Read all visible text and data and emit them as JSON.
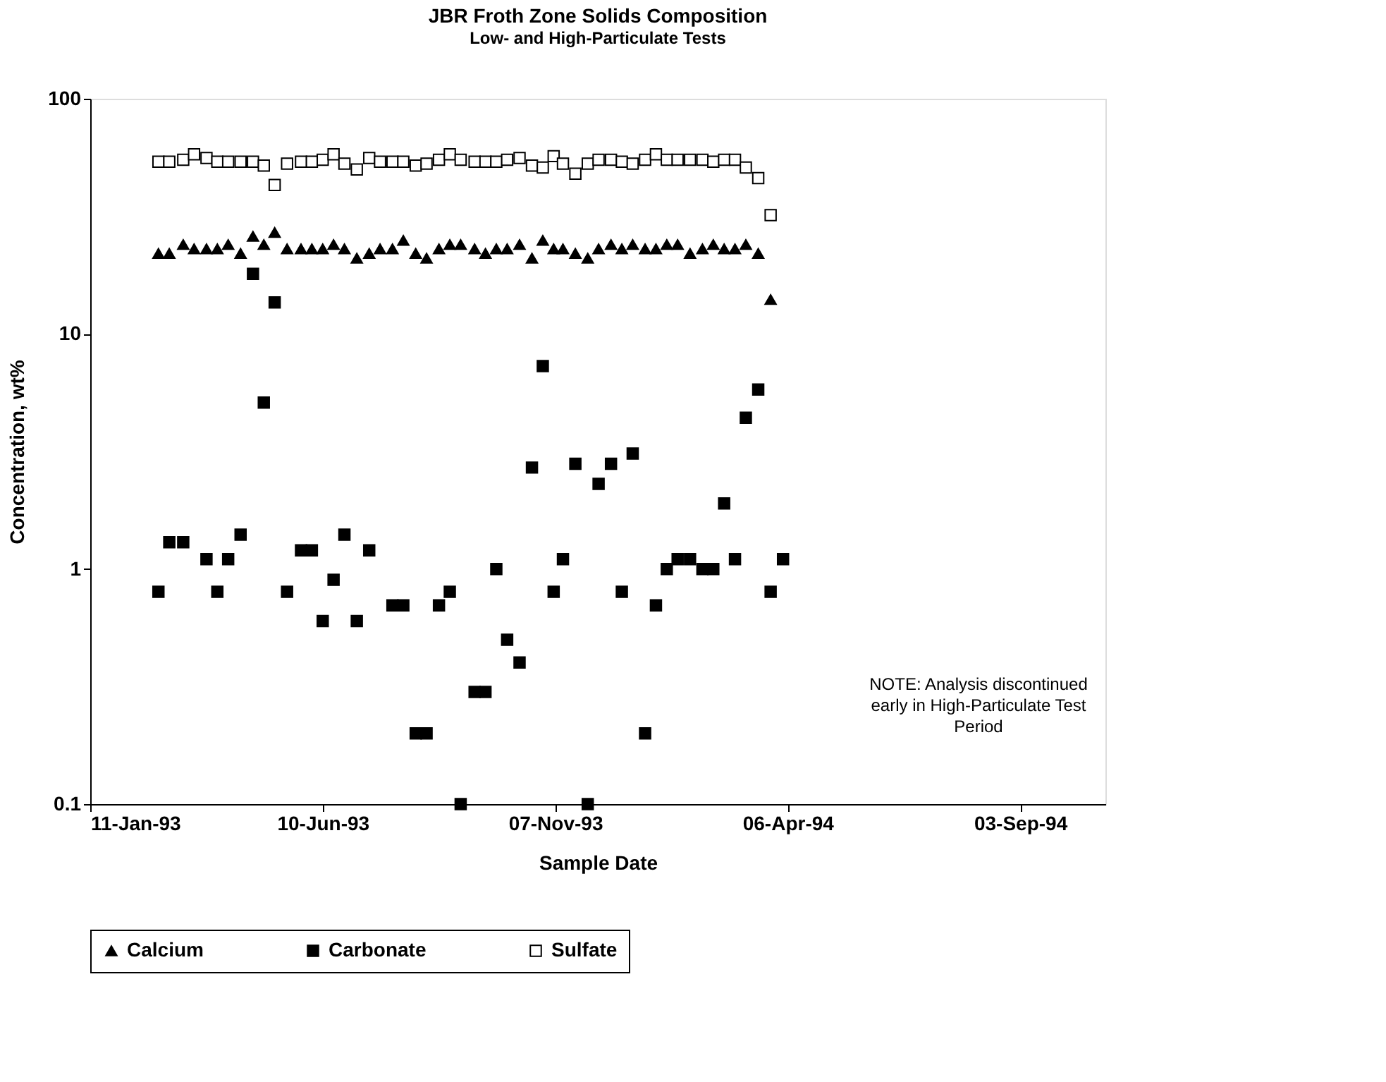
{
  "chart_data": {
    "type": "scatter",
    "title": "JBR Froth Zone Solids Composition",
    "subtitle": "Low- and High-Particulate Tests",
    "xlabel": "Sample Date",
    "ylabel": "Concentration, wt%",
    "x": [
      "1993-02-24",
      "1993-03-03",
      "1993-03-12",
      "1993-03-19",
      "1993-03-27",
      "1993-04-03",
      "1993-04-10",
      "1993-04-18",
      "1993-04-26",
      "1993-05-03",
      "1993-05-10",
      "1993-05-18",
      "1993-05-27",
      "1993-06-03",
      "1993-06-10",
      "1993-06-17",
      "1993-06-24",
      "1993-07-02",
      "1993-07-10",
      "1993-07-17",
      "1993-07-25",
      "1993-08-01",
      "1993-08-09",
      "1993-08-16",
      "1993-08-24",
      "1993-08-31",
      "1993-09-07",
      "1993-09-16",
      "1993-09-23",
      "1993-09-30",
      "1993-10-07",
      "1993-10-15",
      "1993-10-23",
      "1993-10-30",
      "1993-11-06",
      "1993-11-12",
      "1993-11-20",
      "1993-11-28",
      "1993-12-05",
      "1993-12-13",
      "1993-12-20",
      "1993-12-27",
      "1994-01-04",
      "1994-01-11",
      "1994-01-18",
      "1994-01-25",
      "1994-02-02",
      "1994-02-10",
      "1994-02-17",
      "1994-02-24",
      "1994-03-03",
      "1994-03-10",
      "1994-03-18",
      "1994-03-26",
      "1994-04-03"
    ],
    "series": [
      {
        "name": "Calcium",
        "color": "#000000",
        "marker": "triangle",
        "values": [
          22,
          22,
          24,
          23,
          23,
          23,
          24,
          22,
          26,
          24,
          27,
          23,
          23,
          23,
          23,
          24,
          23,
          21,
          22,
          23,
          23,
          25,
          22,
          21,
          23,
          24,
          24,
          23,
          22,
          23,
          23,
          24,
          21,
          25,
          23,
          23,
          22,
          21,
          23,
          24,
          23,
          24,
          23,
          23,
          24,
          24,
          22,
          23,
          24,
          23,
          23,
          24,
          22,
          14,
          null
        ]
      },
      {
        "name": "Carbonate",
        "color": "#000000",
        "marker": "square",
        "values": [
          0.8,
          1.3,
          1.3,
          null,
          1.1,
          0.8,
          1.1,
          1.4,
          18,
          5.1,
          13.6,
          0.8,
          1.2,
          1.2,
          0.6,
          0.9,
          1.4,
          0.6,
          1.2,
          null,
          0.7,
          0.7,
          0.2,
          0.2,
          0.7,
          0.8,
          0.1,
          0.3,
          0.3,
          1.0,
          0.5,
          0.4,
          2.7,
          7.3,
          0.8,
          1.1,
          2.8,
          0.1,
          2.3,
          2.8,
          0.8,
          3.1,
          0.2,
          0.7,
          1.0,
          1.1,
          1.1,
          1.0,
          1.0,
          1.9,
          1.1,
          4.4,
          5.8,
          0.8,
          1.1
        ]
      },
      {
        "name": "Sulfate",
        "color": "#ffffff",
        "marker": "square",
        "values": [
          54,
          54,
          55,
          58,
          56,
          54,
          54,
          54,
          54,
          52,
          43,
          53,
          54,
          54,
          55,
          58,
          53,
          50,
          56,
          54,
          54,
          54,
          52,
          53,
          55,
          58,
          55,
          54,
          54,
          54,
          55,
          56,
          52,
          51,
          57,
          53,
          48,
          53,
          55,
          55,
          54,
          53,
          55,
          58,
          55,
          55,
          55,
          55,
          54,
          55,
          55,
          51,
          46,
          32,
          null
        ]
      }
    ],
    "log": "y",
    "xlim": [
      "1993-01-11",
      "1994-10-28"
    ],
    "xticks": [
      {
        "value": "1993-01-11",
        "label": "11-Jan-93"
      },
      {
        "value": "1993-06-10",
        "label": "10-Jun-93"
      },
      {
        "value": "1993-11-07",
        "label": "07-Nov-93"
      },
      {
        "value": "1994-04-06",
        "label": "06-Apr-94"
      },
      {
        "value": "1994-09-03",
        "label": "03-Sep-94"
      }
    ],
    "ylim": [
      0.1,
      100
    ],
    "yticks": [
      0.1,
      1,
      10,
      100
    ],
    "grid": false,
    "legend": "bottom",
    "annotations": [
      "NOTE:  Analysis discontinued early in High-Particulate Test Period"
    ]
  }
}
